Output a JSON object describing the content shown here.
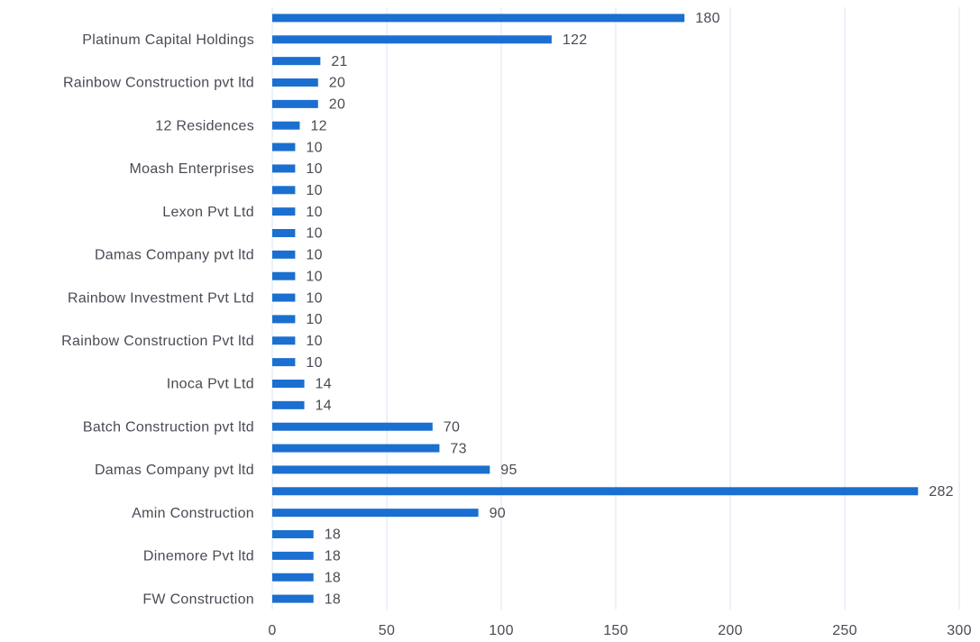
{
  "chart_data": {
    "type": "hbar",
    "categories": [
      null,
      "Platinum Capital Holdings",
      null,
      "Rainbow Construction pvt ltd",
      null,
      "12 Residences",
      null,
      "Moash Enterprises",
      null,
      "Lexon Pvt Ltd",
      null,
      "Damas Company pvt ltd",
      null,
      "Rainbow Investment Pvt Ltd",
      null,
      "Rainbow Construction Pvt ltd",
      null,
      "Inoca Pvt Ltd",
      null,
      "Batch Construction pvt ltd",
      null,
      "Damas Company pvt ltd",
      null,
      "Amin Construction",
      null,
      "Dinemore Pvt ltd",
      null,
      "FW Construction"
    ],
    "values": [
      180,
      122,
      21,
      20,
      20,
      12,
      10,
      10,
      10,
      10,
      10,
      10,
      10,
      10,
      10,
      10,
      10,
      14,
      14,
      70,
      73,
      95,
      282,
      90,
      18,
      18,
      18,
      18
    ],
    "color": "#1a6fd0",
    "xlim": [
      0,
      300
    ],
    "xticks": [
      0,
      50,
      100,
      150,
      200,
      250,
      300
    ],
    "grid": true
  }
}
